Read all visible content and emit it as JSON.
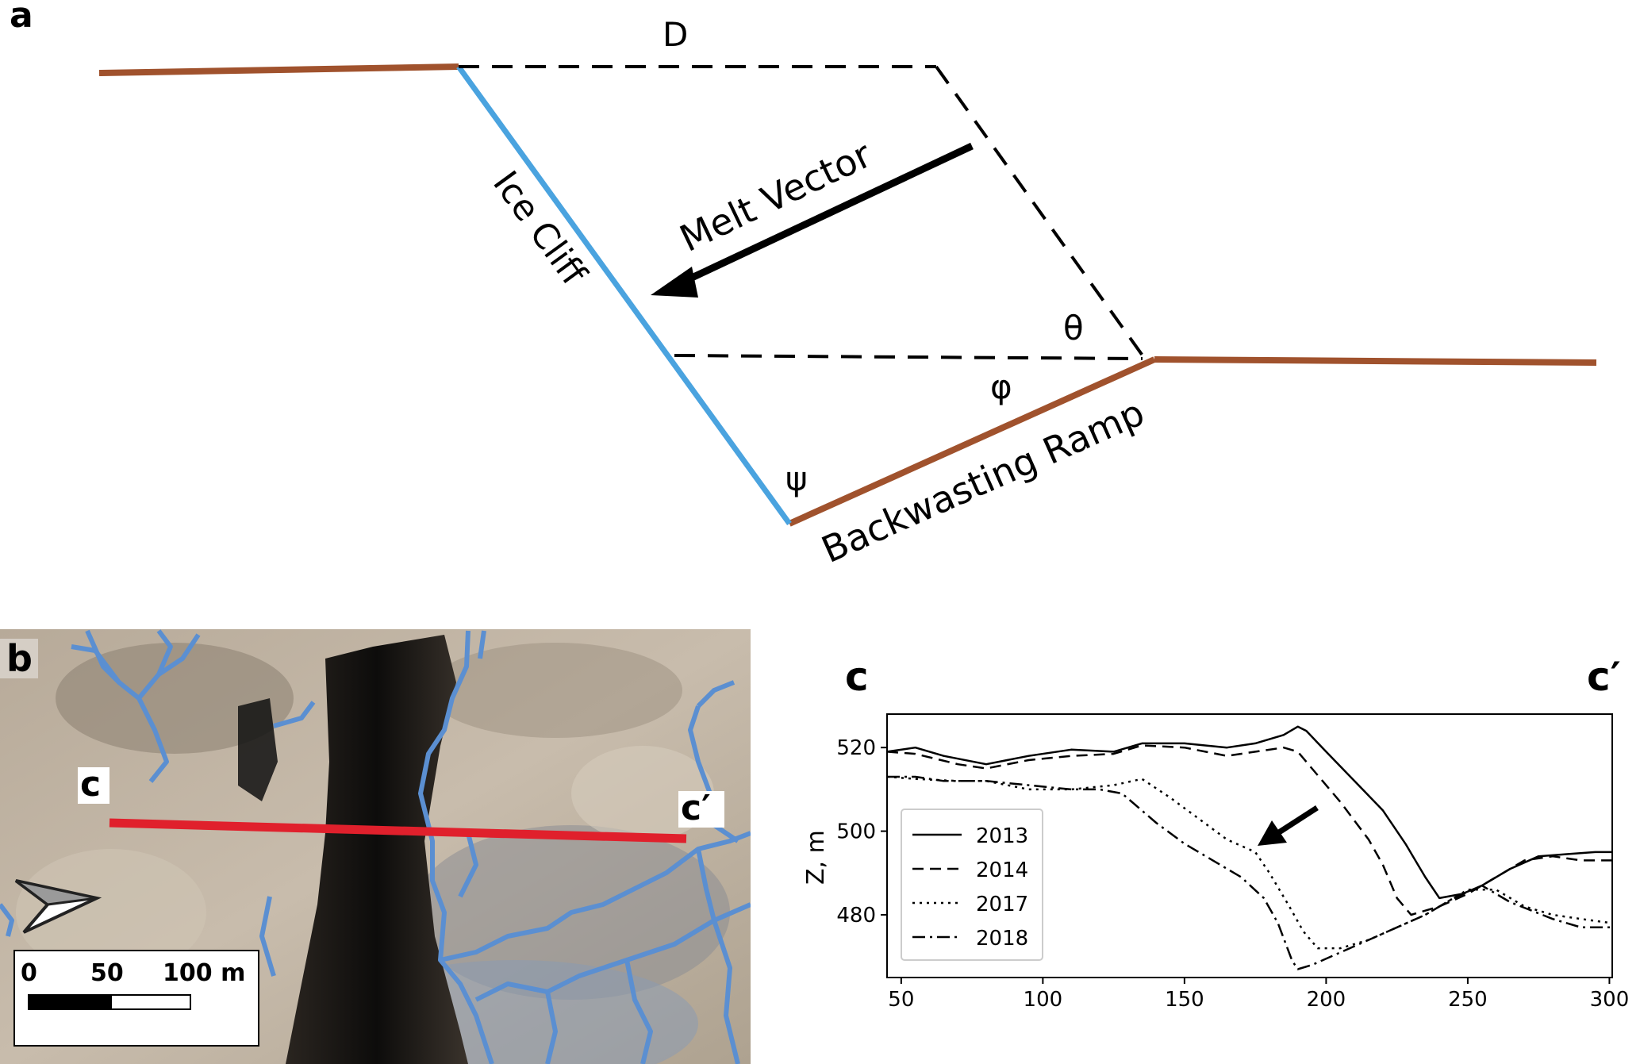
{
  "panels": {
    "a": "a",
    "b": "b",
    "c": "c",
    "c_prime": "c′"
  },
  "diagram_a": {
    "labels": {
      "d": "D",
      "melt_vector": "Melt Vector",
      "ice_cliff": "Ice Cliff",
      "theta": "θ",
      "phi": "φ",
      "psi": "ψ",
      "backwasting_ramp": "Backwasting Ramp"
    },
    "colors": {
      "terrain": "#a0522d",
      "ice_cliff": "#4aa3df",
      "lines": "#000000"
    }
  },
  "map_b": {
    "profile_start": "c",
    "profile_end": "c′",
    "scale_labels": [
      "0",
      "50",
      "100 m"
    ],
    "colors": {
      "profile_line": "#e0202c",
      "outlines": "#5b8fd1"
    },
    "icons": [
      "north-arrow-icon"
    ]
  },
  "chart_data": {
    "type": "line",
    "ylabel": "Z, m",
    "xlabel": "",
    "xlim": [
      45,
      301
    ],
    "ylim": [
      465,
      528
    ],
    "xticks": [
      50,
      100,
      150,
      200,
      250,
      300
    ],
    "yticks": [
      480,
      500,
      520
    ],
    "legend_position": "lower-left",
    "series": [
      {
        "name": "2013",
        "dash": "solid",
        "points": [
          [
            45,
            519
          ],
          [
            55,
            520
          ],
          [
            65,
            518
          ],
          [
            80,
            516
          ],
          [
            95,
            518
          ],
          [
            110,
            519.5
          ],
          [
            125,
            519
          ],
          [
            135,
            521
          ],
          [
            150,
            521
          ],
          [
            165,
            520
          ],
          [
            175,
            521
          ],
          [
            185,
            523
          ],
          [
            190,
            525
          ],
          [
            193,
            524
          ],
          [
            200,
            519
          ],
          [
            210,
            512
          ],
          [
            220,
            505
          ],
          [
            228,
            497
          ],
          [
            235,
            489
          ],
          [
            240,
            484
          ],
          [
            248,
            485
          ],
          [
            255,
            487
          ],
          [
            265,
            491
          ],
          [
            275,
            494
          ],
          [
            285,
            494.5
          ],
          [
            295,
            495
          ],
          [
            301,
            495
          ]
        ]
      },
      {
        "name": "2014",
        "dash": "dashed",
        "points": [
          [
            45,
            519
          ],
          [
            55,
            518.5
          ],
          [
            70,
            516
          ],
          [
            80,
            515
          ],
          [
            95,
            517
          ],
          [
            110,
            518
          ],
          [
            125,
            518.5
          ],
          [
            135,
            520.5
          ],
          [
            150,
            520
          ],
          [
            165,
            518
          ],
          [
            175,
            519
          ],
          [
            185,
            520
          ],
          [
            190,
            519
          ],
          [
            195,
            515
          ],
          [
            205,
            507
          ],
          [
            215,
            498
          ],
          [
            220,
            492
          ],
          [
            225,
            484
          ],
          [
            230,
            480
          ],
          [
            240,
            482
          ],
          [
            250,
            485
          ],
          [
            260,
            489
          ],
          [
            270,
            493
          ],
          [
            280,
            494
          ],
          [
            290,
            493
          ],
          [
            301,
            493
          ]
        ]
      },
      {
        "name": "2017",
        "dash": "dotted",
        "points": [
          [
            45,
            513
          ],
          [
            55,
            512.5
          ],
          [
            70,
            512
          ],
          [
            80,
            512
          ],
          [
            95,
            510
          ],
          [
            110,
            510
          ],
          [
            125,
            511
          ],
          [
            135,
            512.5
          ],
          [
            145,
            508
          ],
          [
            155,
            503
          ],
          [
            165,
            498
          ],
          [
            175,
            495
          ],
          [
            180,
            490
          ],
          [
            187,
            482
          ],
          [
            192,
            476
          ],
          [
            197,
            472
          ],
          [
            205,
            472
          ],
          [
            215,
            474
          ],
          [
            225,
            477
          ],
          [
            235,
            480
          ],
          [
            250,
            486
          ],
          [
            260,
            486
          ],
          [
            270,
            482
          ],
          [
            280,
            480
          ],
          [
            290,
            479
          ],
          [
            301,
            478
          ]
        ]
      },
      {
        "name": "2018",
        "dash": "dashdot",
        "points": [
          [
            45,
            513
          ],
          [
            55,
            513
          ],
          [
            65,
            512
          ],
          [
            80,
            512
          ],
          [
            95,
            511
          ],
          [
            110,
            510
          ],
          [
            120,
            510
          ],
          [
            128,
            509
          ],
          [
            140,
            502
          ],
          [
            150,
            497
          ],
          [
            160,
            493
          ],
          [
            170,
            489
          ],
          [
            178,
            484
          ],
          [
            183,
            478
          ],
          [
            188,
            469
          ],
          [
            190,
            467
          ],
          [
            195,
            468
          ],
          [
            205,
            471
          ],
          [
            215,
            474
          ],
          [
            225,
            477
          ],
          [
            235,
            480
          ],
          [
            245,
            484
          ],
          [
            255,
            487
          ],
          [
            265,
            483
          ],
          [
            280,
            479
          ],
          [
            290,
            477
          ],
          [
            301,
            477
          ]
        ]
      }
    ],
    "annotation": "arrow"
  }
}
